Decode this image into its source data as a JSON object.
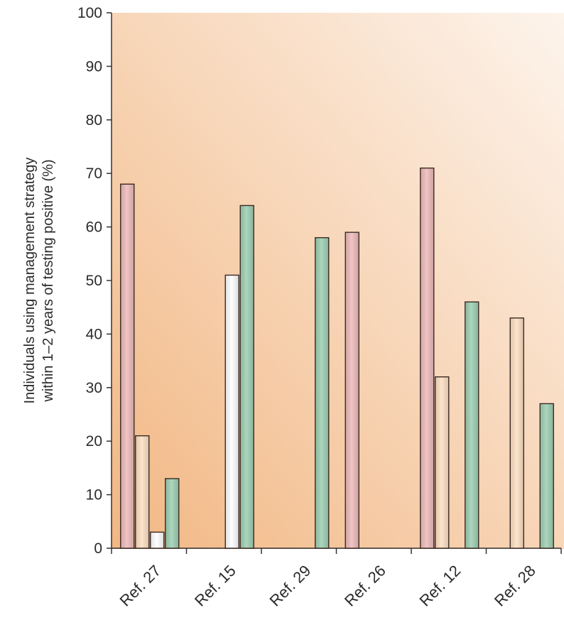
{
  "chart_data": {
    "type": "bar",
    "title": "",
    "ylabel_lines": [
      "Individuals using management strategy",
      "within 1–2 years of testing positive (%)"
    ],
    "xlabel": "",
    "ylim": [
      0,
      100
    ],
    "yticks": [
      0,
      10,
      20,
      30,
      40,
      50,
      60,
      70,
      80,
      90,
      100
    ],
    "categories": [
      "Ref. 27",
      "Ref. 15",
      "Ref. 29",
      "Ref. 26",
      "Ref. 12",
      "Ref. 28"
    ],
    "series": [
      {
        "color": "#efbcbc",
        "values": [
          68,
          null,
          null,
          59,
          71,
          null
        ]
      },
      {
        "color": "#fde0c4",
        "values": [
          21,
          null,
          null,
          null,
          32,
          43
        ]
      },
      {
        "color": "#ffffff",
        "values": [
          3,
          51,
          null,
          null,
          null,
          null
        ]
      },
      {
        "color": "#9fd0b4",
        "values": [
          13,
          64,
          58,
          null,
          46,
          27
        ]
      }
    ],
    "grid": false,
    "legend": "none",
    "background": [
      "#f2b783",
      "#fdf4ec"
    ]
  }
}
